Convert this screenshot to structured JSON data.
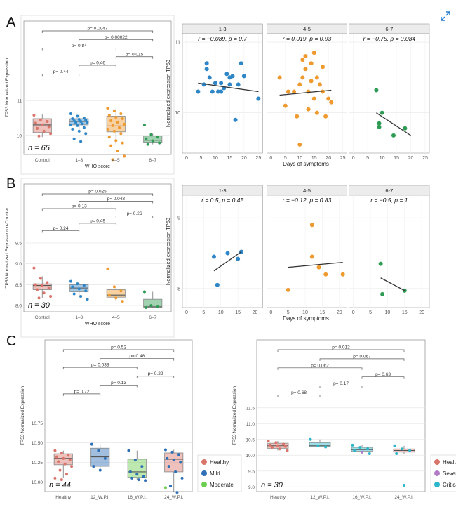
{
  "expand_icon": "expand-icon",
  "colors": {
    "control": "#d9756a",
    "c13": "#2f86c6",
    "c45": "#ee9a2f",
    "c67": "#2f9c55",
    "healthy": "#d9756a",
    "mild": "#2f6fb5",
    "moderate": "#6ccf4f",
    "severe": "#b07cc6",
    "critical": "#2bb6c9",
    "reg": "#333333"
  },
  "panel_labels": [
    "A",
    "B",
    "C"
  ],
  "chart_data": [
    {
      "id": "A_box",
      "type": "box",
      "panel": "A",
      "ylabel": "TP53 Normalized Expression",
      "xlabel": "WHO score",
      "categories": [
        "Control",
        "1–3",
        "4–5",
        "6–7"
      ],
      "yticks": [
        10,
        11
      ],
      "ylim": [
        9.45,
        11.55
      ],
      "n_label": "n = 65",
      "boxes": [
        {
          "q1": 10.08,
          "med": 10.3,
          "q3": 10.48,
          "lo": 9.95,
          "hi": 10.6,
          "pts": [
            10.58,
            10.45,
            10.4,
            10.35,
            10.3,
            10.25,
            10.2,
            10.12,
            10.05,
            9.98
          ]
        },
        {
          "q1": 10.3,
          "med": 10.4,
          "q3": 10.48,
          "lo": 10.1,
          "hi": 10.6,
          "pts": [
            10.62,
            10.55,
            10.5,
            10.48,
            10.46,
            10.44,
            10.42,
            10.4,
            10.38,
            10.36,
            10.33,
            10.3,
            10.28,
            10.22,
            10.18,
            10.12,
            10.05,
            9.9,
            9.82
          ]
        },
        {
          "q1": 10.1,
          "med": 10.27,
          "q3": 10.55,
          "lo": 9.75,
          "hi": 10.78,
          "pts": [
            10.78,
            10.7,
            10.62,
            10.58,
            10.52,
            10.48,
            10.42,
            10.38,
            10.32,
            10.28,
            10.22,
            10.18,
            10.12,
            10.05,
            9.95,
            9.85,
            9.78,
            9.7,
            9.55,
            9.4,
            9.3
          ]
        },
        {
          "q1": 9.8,
          "med": 9.86,
          "q3": 9.98,
          "lo": 9.74,
          "hi": 10.05,
          "pts": [
            10.3,
            10.02,
            9.95,
            9.9,
            9.84,
            9.78,
            9.74
          ]
        }
      ],
      "comparisons": [
        {
          "a": 0,
          "b": 3,
          "p": "p= 0.0047"
        },
        {
          "a": 1,
          "b": 3,
          "p": "p= 0.00022"
        },
        {
          "a": 0,
          "b": 2,
          "p": "p= 0.84"
        },
        {
          "a": 2,
          "b": 3,
          "p": "p= 0.015"
        },
        {
          "a": 1,
          "b": 2,
          "p": "p= 0.46"
        },
        {
          "a": 0,
          "b": 1,
          "p": "p= 0.44"
        }
      ]
    },
    {
      "id": "A_scatter",
      "type": "scatter",
      "panel": "A",
      "ylabel": "Normalized expression TP53",
      "xlabel": "Days of symptoms",
      "ylim": [
        9.45,
        11.1
      ],
      "yticks": [
        10,
        11
      ],
      "xlim": [
        0,
        25
      ],
      "xticks": [
        0,
        5,
        10,
        15,
        20,
        25
      ],
      "facets": [
        {
          "title": "1-3",
          "stat": "r = −0.089, p = 0.7",
          "pts": [
            [
              4,
              10.3
            ],
            [
              6,
              10.4
            ],
            [
              7,
              10.62
            ],
            [
              7,
              10.7
            ],
            [
              8,
              10.5
            ],
            [
              9,
              10.3
            ],
            [
              10,
              10.42
            ],
            [
              11,
              10.3
            ],
            [
              12,
              10.42
            ],
            [
              12,
              10.3
            ],
            [
              13,
              10.35
            ],
            [
              14,
              10.55
            ],
            [
              15,
              10.4
            ],
            [
              15,
              10.5
            ],
            [
              16,
              10.52
            ],
            [
              17,
              9.9
            ],
            [
              18,
              10.4
            ],
            [
              19,
              10.7
            ],
            [
              20,
              10.52
            ],
            [
              25,
              10.2
            ]
          ],
          "line": [
            [
              4,
              10.42
            ],
            [
              25,
              10.3
            ]
          ]
        },
        {
          "title": "4-5",
          "stat": "r = 0.019, p = 0.93",
          "pts": [
            [
              3,
              10.5
            ],
            [
              5,
              10.1
            ],
            [
              6,
              10.3
            ],
            [
              8,
              10.3
            ],
            [
              9,
              9.95
            ],
            [
              10,
              9.55
            ],
            [
              10,
              10.4
            ],
            [
              11,
              10.75
            ],
            [
              11,
              10.5
            ],
            [
              12,
              10.8
            ],
            [
              12,
              10.62
            ],
            [
              13,
              10.05
            ],
            [
              13,
              10.3
            ],
            [
              14,
              10.7
            ],
            [
              14,
              10.45
            ],
            [
              15,
              10.85
            ],
            [
              15,
              10.2
            ],
            [
              16,
              10.0
            ],
            [
              16,
              10.5
            ],
            [
              17,
              10.4
            ],
            [
              18,
              10.3
            ],
            [
              18,
              10.65
            ],
            [
              19,
              9.95
            ],
            [
              20,
              10.2
            ],
            [
              21,
              10.15
            ]
          ],
          "line": [
            [
              3,
              10.25
            ],
            [
              21,
              10.32
            ]
          ]
        },
        {
          "title": "6-7",
          "stat": "r = −0.75, p = 0.084",
          "pts": [
            [
              8,
              10.32
            ],
            [
              9,
              9.85
            ],
            [
              9,
              9.8
            ],
            [
              10,
              10.0
            ],
            [
              14,
              9.68
            ],
            [
              18,
              9.78
            ]
          ],
          "line": [
            [
              8,
              10.0
            ],
            [
              20,
              9.68
            ]
          ]
        }
      ]
    },
    {
      "id": "B_box",
      "type": "box",
      "panel": "B",
      "ylabel": "TP53 Normalized Expression n-Counter",
      "xlabel": "WHO score",
      "categories": [
        "Control",
        "1–3",
        "4–5",
        "6–7"
      ],
      "yticks": [
        8.0,
        8.5,
        9.0,
        9.5
      ],
      "ytick_labels": [
        "8.0",
        "8.5",
        "9.0",
        "9.5"
      ],
      "ylim": [
        7.85,
        9.65
      ],
      "n_label": "n = 30",
      "boxes": [
        {
          "q1": 8.38,
          "med": 8.48,
          "q3": 8.52,
          "lo": 8.18,
          "hi": 8.7,
          "pts": [
            8.9,
            8.65,
            8.55,
            8.5,
            8.48,
            8.42,
            8.38,
            8.3,
            8.22,
            8.18
          ]
        },
        {
          "q1": 8.33,
          "med": 8.42,
          "q3": 8.5,
          "lo": 8.18,
          "hi": 8.55,
          "pts": [
            8.58,
            8.52,
            8.48,
            8.45,
            8.4,
            8.35,
            8.28,
            8.22,
            8.15
          ]
        },
        {
          "q1": 8.2,
          "med": 8.25,
          "q3": 8.38,
          "lo": 8.1,
          "hi": 8.45,
          "pts": [
            8.88,
            8.45,
            8.35,
            8.25,
            8.18,
            8.1
          ]
        },
        {
          "q1": 7.96,
          "med": 7.97,
          "q3": 8.15,
          "lo": 7.95,
          "hi": 8.33,
          "pts": [
            8.33,
            8.0,
            7.97,
            7.95
          ]
        }
      ],
      "comparisons": [
        {
          "a": 0,
          "b": 3,
          "p": "p= 0.025"
        },
        {
          "a": 1,
          "b": 3,
          "p": "p= 0.048"
        },
        {
          "a": 0,
          "b": 2,
          "p": "p= 0.13"
        },
        {
          "a": 2,
          "b": 3,
          "p": "p= 0.26"
        },
        {
          "a": 1,
          "b": 2,
          "p": "p= 0.49"
        },
        {
          "a": 0,
          "b": 1,
          "p": "p= 0.24"
        }
      ]
    },
    {
      "id": "B_scatter",
      "type": "scatter",
      "panel": "B",
      "ylabel": "Normalized expression TP53",
      "xlabel": "Days of symptoms",
      "ylim": [
        7.75,
        9.3
      ],
      "yticks": [
        8,
        9
      ],
      "xlim": [
        0,
        21
      ],
      "xticks": [
        0,
        5,
        10,
        15,
        20
      ],
      "facets": [
        {
          "title": "1-3",
          "stat": "r = 0.5, p = 0.45",
          "pts": [
            [
              8,
              8.45
            ],
            [
              9,
              8.05
            ],
            [
              12,
              8.5
            ],
            [
              15,
              8.42
            ],
            [
              16,
              8.52
            ]
          ],
          "line": [
            [
              8,
              8.25
            ],
            [
              16,
              8.52
            ]
          ]
        },
        {
          "title": "4-5",
          "stat": "r = −0.12, p = 0.83",
          "pts": [
            [
              5,
              7.98
            ],
            [
              12,
              8.9
            ],
            [
              12,
              8.45
            ],
            [
              14,
              8.3
            ],
            [
              16,
              8.2
            ],
            [
              21,
              8.2
            ]
          ],
          "line": [
            [
              5,
              8.3
            ],
            [
              21,
              8.37
            ]
          ]
        },
        {
          "title": "6-7",
          "stat": "r = −0.5, p = 1",
          "pts": [
            [
              8,
              8.35
            ],
            [
              8.5,
              7.92
            ],
            [
              15,
              7.97
            ]
          ],
          "line": [
            [
              8,
              8.15
            ],
            [
              15,
              7.97
            ]
          ]
        }
      ]
    },
    {
      "id": "C_left",
      "type": "box",
      "panel": "C",
      "ylabel": "TP53 Normalized Expression",
      "xlabel": "",
      "categories": [
        "Healthy",
        "12_W.P.I.",
        "16_W.P.I.",
        "24_W.P.I."
      ],
      "yticks": [
        10.0,
        10.25,
        10.5,
        10.75
      ],
      "ytick_labels": [
        "10.00",
        "10.25",
        "10.50",
        "10.75"
      ],
      "ylim": [
        9.88,
        11.02
      ],
      "n_label": "n = 44",
      "box_colors": [
        "healthy",
        "mild",
        "moderate",
        "healthy"
      ],
      "boxes": [
        {
          "q1": 10.22,
          "med": 10.3,
          "q3": 10.36,
          "lo": 10.05,
          "hi": 10.4,
          "pts": [
            10.4,
            10.37,
            10.34,
            10.32,
            10.3,
            10.28,
            10.26,
            10.23,
            10.2,
            10.15,
            10.1,
            10.05,
            10.03
          ],
          "pcols": [
            "healthy"
          ]
        },
        {
          "q1": 10.2,
          "med": 10.32,
          "q3": 10.43,
          "lo": 10.15,
          "hi": 10.48,
          "pts": [
            10.48,
            10.4,
            10.3,
            10.2,
            10.15
          ],
          "pcols": [
            "mild"
          ]
        },
        {
          "q1": 10.06,
          "med": 10.13,
          "q3": 10.29,
          "lo": 10.03,
          "hi": 10.4,
          "pts": [
            10.4,
            10.28,
            10.2,
            10.13,
            10.1,
            10.07,
            10.05,
            10.03,
            10.02
          ],
          "pcols": [
            "mild"
          ]
        },
        {
          "q1": 10.13,
          "med": 10.29,
          "q3": 10.37,
          "lo": 9.87,
          "hi": 10.41,
          "pts": [
            10.41,
            10.38,
            10.35,
            10.3,
            10.28,
            10.25,
            10.2,
            10.13,
            10.05,
            9.95,
            9.87,
            9.93
          ],
          "pcols": [
            "mild",
            "mild",
            "mild",
            "mild",
            "mild",
            "mild",
            "mild",
            "mild",
            "mild",
            "mild",
            "mild",
            "moderate"
          ]
        }
      ],
      "comparisons": [
        {
          "a": 0,
          "b": 3,
          "p": "p= 0.52"
        },
        {
          "a": 1,
          "b": 3,
          "p": "p= 0.48"
        },
        {
          "a": 0,
          "b": 2,
          "p": "p= 0.033"
        },
        {
          "a": 2,
          "b": 3,
          "p": "p= 0.22"
        },
        {
          "a": 1,
          "b": 2,
          "p": "p= 0.13"
        },
        {
          "a": 0,
          "b": 1,
          "p": "p= 0.72"
        }
      ],
      "legend": [
        {
          "key": "healthy",
          "label": "Healthy"
        },
        {
          "key": "mild",
          "label": "Mild"
        },
        {
          "key": "moderate",
          "label": "Moderate"
        }
      ]
    },
    {
      "id": "C_right",
      "type": "box",
      "panel": "C",
      "ylabel": "TP53 Normalized Expression",
      "xlabel": "",
      "categories": [
        "Healthy",
        "12_W.P.I.",
        "16_W.P.I.",
        "24_W.P.I."
      ],
      "yticks": [
        9.0,
        9.5,
        10.0,
        10.5,
        11.0,
        11.5
      ],
      "ytick_labels": [
        "9.0",
        "9.5",
        "10.0",
        "10.5",
        "11.0",
        "11.5"
      ],
      "ylim": [
        8.85,
        11.65
      ],
      "n_label": "n = 30",
      "box_colors": [
        "healthy",
        "critical",
        "critical",
        "healthy"
      ],
      "boxes": [
        {
          "q1": 10.22,
          "med": 10.3,
          "q3": 10.38,
          "lo": 10.15,
          "hi": 10.45,
          "pts": [
            10.45,
            10.4,
            10.35,
            10.32,
            10.3,
            10.28,
            10.25,
            10.2,
            10.15
          ],
          "pcols": [
            "healthy"
          ]
        },
        {
          "q1": 10.27,
          "med": 10.3,
          "q3": 10.4,
          "lo": 10.25,
          "hi": 10.5,
          "pts": [
            10.5,
            10.3,
            10.26
          ],
          "pcols": [
            "critical"
          ]
        },
        {
          "q1": 10.13,
          "med": 10.18,
          "q3": 10.25,
          "lo": 10.05,
          "hi": 10.32,
          "pts": [
            10.32,
            10.25,
            10.2,
            10.15,
            10.1,
            10.05
          ],
          "pcols": [
            "critical",
            "critical",
            "critical",
            "critical",
            "severe",
            "critical"
          ]
        },
        {
          "q1": 10.1,
          "med": 10.15,
          "q3": 10.2,
          "lo": 10.05,
          "hi": 10.3,
          "pts": [
            10.3,
            10.2,
            10.15,
            10.05,
            9.05
          ],
          "pcols": [
            "critical"
          ]
        }
      ],
      "comparisons": [
        {
          "a": 0,
          "b": 3,
          "p": "p= 0.012"
        },
        {
          "a": 1,
          "b": 3,
          "p": "p= 0.067"
        },
        {
          "a": 0,
          "b": 2,
          "p": "p= 0.062"
        },
        {
          "a": 2,
          "b": 3,
          "p": "p= 0.63"
        },
        {
          "a": 1,
          "b": 2,
          "p": "p= 0.17"
        },
        {
          "a": 0,
          "b": 1,
          "p": "p= 0.68"
        }
      ],
      "legend": [
        {
          "key": "healthy",
          "label": "Healthy"
        },
        {
          "key": "severe",
          "label": "Severe"
        },
        {
          "key": "critical",
          "label": "Critical"
        }
      ]
    }
  ]
}
